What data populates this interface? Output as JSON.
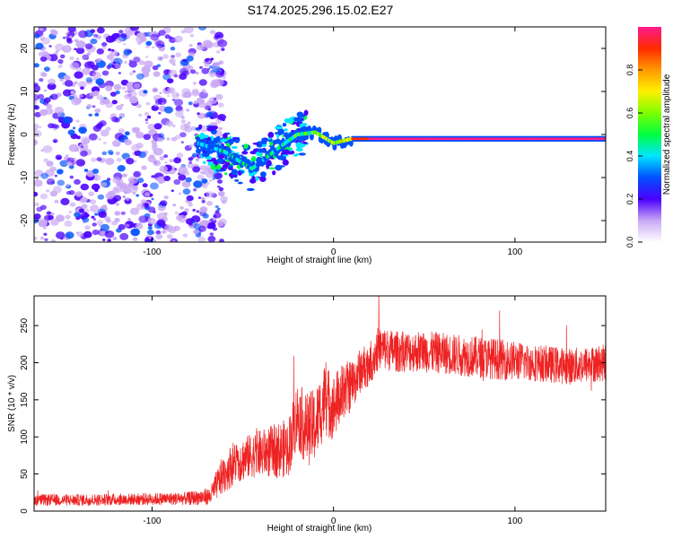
{
  "title": "S174.2025.296.15.02.E27",
  "chart_data": [
    {
      "type": "heatmap",
      "name": "spectrogram",
      "xlabel": "Height of straight line (km)",
      "ylabel": "Frequency (Hz)",
      "xlim": [
        -165,
        150
      ],
      "ylim": [
        -25,
        25
      ],
      "xticks": [
        -100,
        0,
        100
      ],
      "xtick_labels": [
        "-100",
        "0",
        "100"
      ],
      "yticks": [
        -20,
        -10,
        0,
        10,
        20
      ],
      "ytick_labels": [
        "-20",
        "-10",
        "0",
        "10",
        "20"
      ],
      "ridge": {
        "description": "narrow high-amplitude line near 0 Hz",
        "x": [
          -75,
          -60,
          -45,
          -30,
          -20,
          -10,
          0,
          10,
          30,
          60,
          90,
          120,
          150
        ],
        "freq": [
          -2,
          -4,
          -8,
          -3,
          0,
          0.5,
          -2,
          -1,
          -1,
          -1,
          -1,
          -1,
          -1
        ],
        "amplitude": [
          0.35,
          0.4,
          0.4,
          0.45,
          0.55,
          0.6,
          0.6,
          0.85,
          0.95,
          0.95,
          0.95,
          0.95,
          0.95
        ]
      },
      "noise_region_x": [
        -165,
        -70
      ],
      "colorbar": {
        "label": "Normalized spectral amplitude",
        "range": [
          0,
          1
        ],
        "ticks": [
          0.0,
          0.2,
          0.4,
          0.6,
          0.8
        ],
        "tick_labels": [
          "0.0",
          "0.2",
          "0.4",
          "0.6",
          "0.8"
        ]
      }
    },
    {
      "type": "line",
      "name": "snr",
      "xlabel": "Height of straight line (km)",
      "ylabel": "SNR (10 * v/v)",
      "xlim": [
        -165,
        150
      ],
      "ylim": [
        0,
        290
      ],
      "xticks": [
        -100,
        0,
        100
      ],
      "xtick_labels": [
        "-100",
        "0",
        "100"
      ],
      "yticks": [
        0,
        50,
        100,
        150,
        200,
        250
      ],
      "ytick_labels": [
        "0",
        "50",
        "100",
        "150",
        "200",
        "250"
      ],
      "color": "#ee2222",
      "series": [
        {
          "name": "SNR",
          "envelope_x": [
            -165,
            -140,
            -110,
            -80,
            -68,
            -62,
            -55,
            -45,
            -35,
            -25,
            -20,
            -15,
            -10,
            -5,
            0,
            5,
            10,
            15,
            20,
            25,
            35,
            50,
            70,
            90,
            110,
            130,
            150
          ],
          "baseline": [
            15,
            15,
            16,
            17,
            20,
            45,
            65,
            75,
            80,
            85,
            130,
            110,
            115,
            150,
            140,
            160,
            170,
            190,
            200,
            220,
            215,
            215,
            210,
            205,
            200,
            195,
            200
          ],
          "spread": [
            8,
            8,
            8,
            9,
            12,
            25,
            30,
            30,
            35,
            40,
            45,
            50,
            50,
            50,
            45,
            40,
            35,
            30,
            30,
            30,
            28,
            28,
            28,
            28,
            25,
            25,
            25
          ]
        }
      ]
    }
  ]
}
